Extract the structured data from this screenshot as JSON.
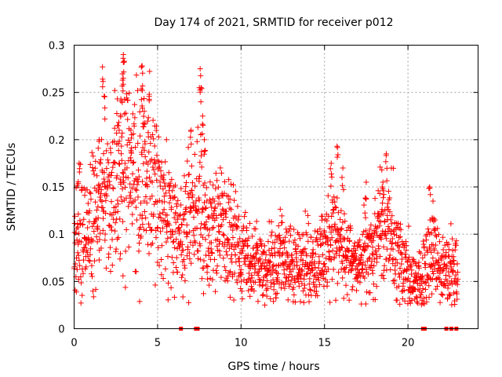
{
  "chart_data": {
    "type": "scatter",
    "title": "Day 174 of 2021, SRMTID for receiver p012",
    "xlabel": "GPS time / hours",
    "ylabel": "SRMTID / TECUs",
    "xlim": [
      0,
      24.2
    ],
    "ylim": [
      0,
      0.3
    ],
    "x_ticks": [
      0,
      5,
      10,
      15,
      20
    ],
    "x_tick_labels": [
      "0",
      "5",
      "10",
      "15",
      "20"
    ],
    "y_ticks": [
      0,
      0.05,
      0.1,
      0.15,
      0.2,
      0.25,
      0.3
    ],
    "y_tick_labels": [
      "0",
      "0.05",
      "0.1",
      "0.15",
      "0.2",
      "0.25",
      "0.3"
    ],
    "grid": true,
    "marker": "+",
    "color": "#ff0000",
    "series": [
      {
        "name": "SRMTID",
        "trend": [
          {
            "x": 0.0,
            "y": 0.09
          },
          {
            "x": 0.5,
            "y": 0.1
          },
          {
            "x": 1.0,
            "y": 0.11
          },
          {
            "x": 1.5,
            "y": 0.13
          },
          {
            "x": 2.0,
            "y": 0.15
          },
          {
            "x": 2.5,
            "y": 0.15
          },
          {
            "x": 3.0,
            "y": 0.17
          },
          {
            "x": 3.5,
            "y": 0.18
          },
          {
            "x": 4.0,
            "y": 0.16
          },
          {
            "x": 4.5,
            "y": 0.17
          },
          {
            "x": 5.0,
            "y": 0.14
          },
          {
            "x": 5.5,
            "y": 0.12
          },
          {
            "x": 6.0,
            "y": 0.1
          },
          {
            "x": 6.5,
            "y": 0.11
          },
          {
            "x": 7.0,
            "y": 0.12
          },
          {
            "x": 7.5,
            "y": 0.13
          },
          {
            "x": 8.0,
            "y": 0.1
          },
          {
            "x": 8.5,
            "y": 0.11
          },
          {
            "x": 9.0,
            "y": 0.1
          },
          {
            "x": 9.5,
            "y": 0.09
          },
          {
            "x": 10.0,
            "y": 0.085
          },
          {
            "x": 10.5,
            "y": 0.07
          },
          {
            "x": 11.0,
            "y": 0.07
          },
          {
            "x": 11.5,
            "y": 0.065
          },
          {
            "x": 12.0,
            "y": 0.07
          },
          {
            "x": 12.5,
            "y": 0.075
          },
          {
            "x": 13.0,
            "y": 0.065
          },
          {
            "x": 13.5,
            "y": 0.07
          },
          {
            "x": 14.0,
            "y": 0.065
          },
          {
            "x": 14.5,
            "y": 0.075
          },
          {
            "x": 15.0,
            "y": 0.08
          },
          {
            "x": 15.5,
            "y": 0.1
          },
          {
            "x": 16.0,
            "y": 0.09
          },
          {
            "x": 16.5,
            "y": 0.075
          },
          {
            "x": 17.0,
            "y": 0.06
          },
          {
            "x": 17.5,
            "y": 0.075
          },
          {
            "x": 18.0,
            "y": 0.09
          },
          {
            "x": 18.5,
            "y": 0.11
          },
          {
            "x": 19.0,
            "y": 0.1
          },
          {
            "x": 19.5,
            "y": 0.08
          },
          {
            "x": 20.0,
            "y": 0.06
          },
          {
            "x": 20.5,
            "y": 0.045
          },
          {
            "x": 21.0,
            "y": 0.07
          },
          {
            "x": 21.5,
            "y": 0.08
          },
          {
            "x": 22.0,
            "y": 0.065
          },
          {
            "x": 22.5,
            "y": 0.06
          },
          {
            "x": 23.0,
            "y": 0.07
          }
        ],
        "peaks": [
          {
            "x": 0.3,
            "y": 0.175
          },
          {
            "x": 1.5,
            "y": 0.2
          },
          {
            "x": 1.7,
            "y": 0.277
          },
          {
            "x": 1.8,
            "y": 0.246
          },
          {
            "x": 2.6,
            "y": 0.215
          },
          {
            "x": 2.8,
            "y": 0.243
          },
          {
            "x": 2.9,
            "y": 0.263
          },
          {
            "x": 2.95,
            "y": 0.29
          },
          {
            "x": 3.0,
            "y": 0.283
          },
          {
            "x": 3.4,
            "y": 0.21
          },
          {
            "x": 4.05,
            "y": 0.278
          },
          {
            "x": 4.1,
            "y": 0.257
          },
          {
            "x": 4.2,
            "y": 0.23
          },
          {
            "x": 4.5,
            "y": 0.248
          },
          {
            "x": 7.0,
            "y": 0.21
          },
          {
            "x": 7.55,
            "y": 0.275
          },
          {
            "x": 7.6,
            "y": 0.255
          },
          {
            "x": 7.7,
            "y": 0.225
          },
          {
            "x": 7.8,
            "y": 0.2
          },
          {
            "x": 15.75,
            "y": 0.193
          },
          {
            "x": 15.4,
            "y": 0.175
          },
          {
            "x": 16.1,
            "y": 0.17
          },
          {
            "x": 18.7,
            "y": 0.185
          },
          {
            "x": 18.5,
            "y": 0.155
          },
          {
            "x": 17.5,
            "y": 0.155
          },
          {
            "x": 21.3,
            "y": 0.15
          },
          {
            "x": 21.5,
            "y": 0.135
          }
        ],
        "zero_points": [
          6.4,
          7.3,
          7.4,
          20.9,
          21.0,
          22.3,
          22.6,
          22.9
        ]
      }
    ]
  }
}
